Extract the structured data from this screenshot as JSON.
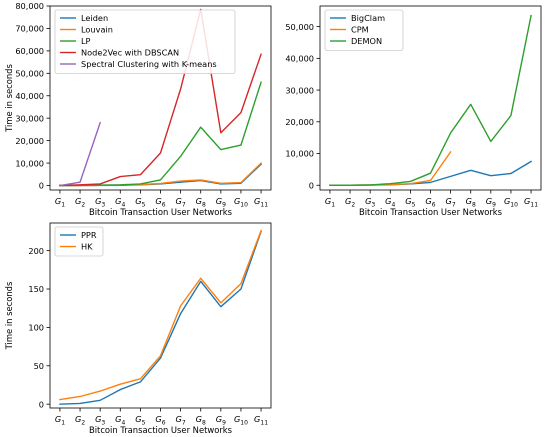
{
  "chart_data": [
    {
      "type": "line",
      "xlabel": "Bitcoin Transaction User Networks",
      "ylabel": "Time in seconds",
      "categories": [
        "1",
        "2",
        "3",
        "4",
        "5",
        "6",
        "7",
        "8",
        "9",
        "10",
        "11"
      ],
      "category_prefix": "G",
      "ylim": [
        -2000,
        80000
      ],
      "yticks": [
        0,
        10000,
        20000,
        30000,
        40000,
        50000,
        60000,
        70000,
        80000
      ],
      "ytick_labels": [
        "0",
        "10,000",
        "20,000",
        "30,000",
        "40,000",
        "50,000",
        "60,000",
        "70,000",
        "80,000"
      ],
      "legend_position": "top-left",
      "grid": false,
      "series": [
        {
          "name": "Leiden",
          "color": "#1f77b4",
          "values": [
            0,
            0,
            50,
            100,
            300,
            700,
            1500,
            2200,
            700,
            1000,
            9500
          ]
        },
        {
          "name": "Louvain",
          "color": "#ff7f0e",
          "values": [
            0,
            0,
            100,
            200,
            400,
            900,
            2000,
            2500,
            1000,
            1300,
            10000
          ]
        },
        {
          "name": "LP",
          "color": "#2ca02c",
          "values": [
            0,
            100,
            200,
            300,
            700,
            2500,
            13000,
            26000,
            16000,
            18000,
            46000
          ]
        },
        {
          "name": "Node2Vec with DBSCAN",
          "color": "#d62728",
          "values": [
            0,
            300,
            700,
            4000,
            4800,
            14500,
            43000,
            78500,
            23500,
            32500,
            58500
          ]
        },
        {
          "name": "Spectral Clustering with K-means",
          "color": "#9467bd",
          "values": [
            0,
            1500,
            28000,
            null,
            null,
            null,
            null,
            null,
            null,
            null,
            null
          ]
        }
      ]
    },
    {
      "type": "line",
      "xlabel": "Bitcoin Transaction User Networks",
      "ylabel": "",
      "categories": [
        "1",
        "2",
        "3",
        "4",
        "5",
        "6",
        "7",
        "8",
        "9",
        "10",
        "11"
      ],
      "category_prefix": "G",
      "ylim": [
        -1500,
        56500
      ],
      "yticks": [
        0,
        10000,
        20000,
        30000,
        40000,
        50000
      ],
      "ytick_labels": [
        "0",
        "10,000",
        "20,000",
        "30,000",
        "40,000",
        "50,000"
      ],
      "legend_position": "top-left",
      "grid": false,
      "series": [
        {
          "name": "BigClam",
          "color": "#1f77b4",
          "values": [
            0,
            0,
            50,
            150,
            400,
            900,
            2800,
            4700,
            3000,
            3700,
            7500
          ]
        },
        {
          "name": "CPM",
          "color": "#ff7f0e",
          "values": [
            0,
            0,
            100,
            200,
            500,
            1500,
            10500,
            null,
            null,
            null,
            null
          ]
        },
        {
          "name": "DEMON",
          "color": "#2ca02c",
          "values": [
            0,
            0,
            100,
            500,
            1200,
            3800,
            16500,
            25500,
            13800,
            22000,
            53500
          ]
        }
      ]
    },
    {
      "type": "line",
      "xlabel": "Bitcoin Transaction User Networks",
      "ylabel": "Time in seconds",
      "categories": [
        "1",
        "2",
        "3",
        "4",
        "5",
        "6",
        "7",
        "8",
        "9",
        "10",
        "11"
      ],
      "category_prefix": "G",
      "ylim": [
        -5,
        236
      ],
      "yticks": [
        0,
        50,
        100,
        150,
        200
      ],
      "ytick_labels": [
        "0",
        "50",
        "100",
        "150",
        "200"
      ],
      "legend_position": "top-left",
      "grid": false,
      "series": [
        {
          "name": "PPR",
          "color": "#1f77b4",
          "values": [
            0,
            1,
            5,
            19,
            29,
            60,
            118,
            160,
            127,
            150,
            225
          ]
        },
        {
          "name": "HK",
          "color": "#ff7f0e",
          "values": [
            6,
            10,
            17,
            26,
            33,
            63,
            128,
            164,
            132,
            157,
            226
          ]
        }
      ]
    }
  ]
}
